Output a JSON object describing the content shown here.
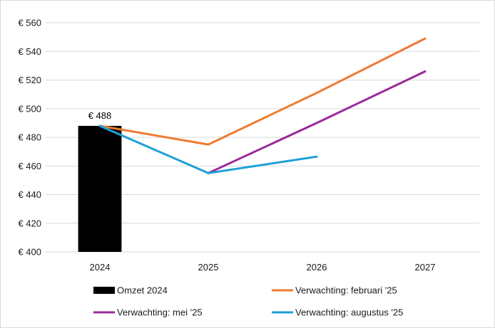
{
  "chart_data": {
    "type": "bar",
    "categories": [
      "2024",
      "2025",
      "2026",
      "2027"
    ],
    "ylim": [
      400,
      560
    ],
    "yticks": [
      400,
      420,
      440,
      460,
      480,
      500,
      520,
      540,
      560
    ],
    "ytick_labels": [
      "€ 400",
      "€ 420",
      "€ 440",
      "€ 460",
      "€ 480",
      "€ 500",
      "€ 520",
      "€ 540",
      "€ 560"
    ],
    "grid": true,
    "legend_position": "bottom",
    "bar_series": {
      "name": "Omzet 2024",
      "color": "#000000",
      "values": [
        488,
        null,
        null,
        null
      ],
      "data_labels": [
        "€ 488",
        null,
        null,
        null
      ]
    },
    "line_series": [
      {
        "name": "Verwachting: februari '25",
        "color": "#ed7d31",
        "values": [
          488,
          475,
          511,
          549
        ]
      },
      {
        "name": "Verwachting: mei '25",
        "color": "#9a2a9a",
        "values": [
          null,
          455,
          490,
          526
        ]
      },
      {
        "name": "Verwachting: augustus '25",
        "color": "#1f9fd8",
        "values": [
          488,
          455,
          466.5,
          null
        ]
      }
    ]
  }
}
